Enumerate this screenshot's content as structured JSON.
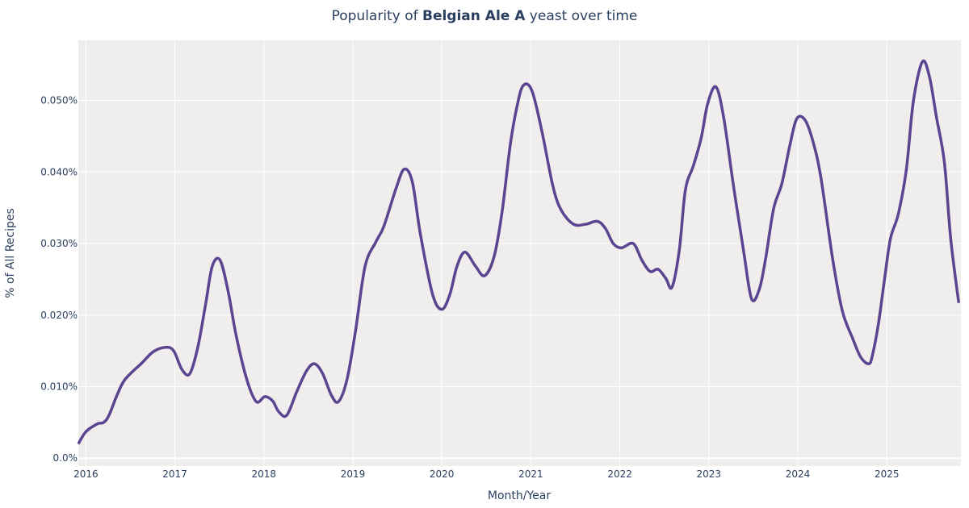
{
  "chart_data": {
    "type": "line",
    "title_prefix": "Popularity of ",
    "title_bold": "Belgian Ale A",
    "title_suffix": " yeast over time",
    "xlabel": "Month/Year",
    "ylabel": "% of All Recipes",
    "xlim": [
      "2015-12-01",
      "2025-11-01"
    ],
    "ylim": [
      -0.0011,
      0.0584
    ],
    "x_ticks": [
      "2016",
      "2017",
      "2018",
      "2019",
      "2020",
      "2021",
      "2022",
      "2023",
      "2024",
      "2025"
    ],
    "y_ticks": [
      0,
      0.01,
      0.02,
      0.03,
      0.04,
      0.05
    ],
    "y_tick_labels": [
      "0.0%",
      "0.010%",
      "0.020%",
      "0.030%",
      "0.040%",
      "0.050%"
    ],
    "grid": true,
    "colors": {
      "line": "#5c4590",
      "plot_bg": "#efeeed",
      "grid": "#ffffff",
      "text": "#2a3f5f"
    },
    "series": [
      {
        "x": [
          "2015-12-01",
          "2016-01-01",
          "2016-02-17",
          "2016-03-14",
          "2016-04-05",
          "2016-05-08",
          "2016-06-10",
          "2016-08-18",
          "2016-10-05",
          "2016-11-24",
          "2016-12-27",
          "2017-01-30",
          "2017-03-03",
          "2017-04-05",
          "2017-05-08",
          "2017-06-03",
          "2017-07-05",
          "2017-08-07",
          "2017-09-09",
          "2017-10-23",
          "2017-12-01",
          "2018-01-05",
          "2018-02-06",
          "2018-03-03",
          "2018-04-05",
          "2018-05-16",
          "2018-06-25",
          "2018-07-27",
          "2018-08-29",
          "2018-10-05",
          "2018-11-03",
          "2018-12-08",
          "2019-01-12",
          "2019-02-20",
          "2019-04-05",
          "2019-05-08",
          "2019-06-28",
          "2019-07-31",
          "2019-09-02",
          "2019-10-05",
          "2019-11-24",
          "2020-01-01",
          "2020-02-03",
          "2020-03-03",
          "2020-04-05",
          "2020-05-19",
          "2020-06-25",
          "2020-08-03",
          "2020-09-05",
          "2020-10-08",
          "2020-11-06",
          "2020-12-01",
          "2021-01-05",
          "2021-02-14",
          "2021-04-01",
          "2021-05-05",
          "2021-06-25",
          "2021-08-14",
          "2021-10-01",
          "2021-11-03",
          "2021-12-05",
          "2022-01-08",
          "2022-02-25",
          "2022-04-01",
          "2022-05-05",
          "2022-06-07",
          "2022-07-09",
          "2022-08-03",
          "2022-09-02",
          "2022-09-27",
          "2022-10-30",
          "2022-12-01",
          "2022-12-27",
          "2023-01-30",
          "2023-03-03",
          "2023-04-12",
          "2023-05-23",
          "2023-06-25",
          "2023-07-27",
          "2023-08-22",
          "2023-09-24",
          "2023-10-27",
          "2023-11-28",
          "2023-12-27",
          "2024-01-30",
          "2024-03-03",
          "2024-04-05",
          "2024-05-23",
          "2024-07-02",
          "2024-08-14",
          "2024-09-16",
          "2024-10-19",
          "2024-11-03",
          "2024-11-28",
          "2024-12-23",
          "2025-01-16",
          "2025-02-17",
          "2025-03-22",
          "2025-04-20",
          "2025-05-27",
          "2025-06-25",
          "2025-07-24",
          "2025-08-25",
          "2025-09-20",
          "2025-10-23"
        ],
        "y": [
          0.002,
          0.0037,
          0.0048,
          0.005,
          0.006,
          0.0088,
          0.011,
          0.0133,
          0.0149,
          0.0155,
          0.015,
          0.0124,
          0.0118,
          0.0155,
          0.0217,
          0.0268,
          0.0277,
          0.0234,
          0.0172,
          0.011,
          0.0079,
          0.0086,
          0.008,
          0.0065,
          0.006,
          0.0093,
          0.0122,
          0.0132,
          0.0119,
          0.0088,
          0.0079,
          0.011,
          0.0178,
          0.0268,
          0.0302,
          0.0324,
          0.0378,
          0.0404,
          0.0386,
          0.0313,
          0.0229,
          0.0208,
          0.0229,
          0.0268,
          0.0288,
          0.0268,
          0.0255,
          0.0282,
          0.0345,
          0.0437,
          0.0493,
          0.0521,
          0.0514,
          0.0459,
          0.0381,
          0.0347,
          0.0327,
          0.0327,
          0.0331,
          0.0321,
          0.03,
          0.0294,
          0.03,
          0.0277,
          0.0261,
          0.0264,
          0.0251,
          0.0239,
          0.0291,
          0.0375,
          0.0409,
          0.0448,
          0.0495,
          0.0519,
          0.0476,
          0.0381,
          0.0291,
          0.0223,
          0.0236,
          0.0279,
          0.0349,
          0.0383,
          0.0435,
          0.0474,
          0.0473,
          0.0443,
          0.0392,
          0.0279,
          0.0206,
          0.0167,
          0.0141,
          0.0132,
          0.0144,
          0.0189,
          0.0251,
          0.0307,
          0.0341,
          0.0403,
          0.0499,
          0.0554,
          0.0533,
          0.0476,
          0.0414,
          0.0307,
          0.0217
        ]
      }
    ]
  }
}
